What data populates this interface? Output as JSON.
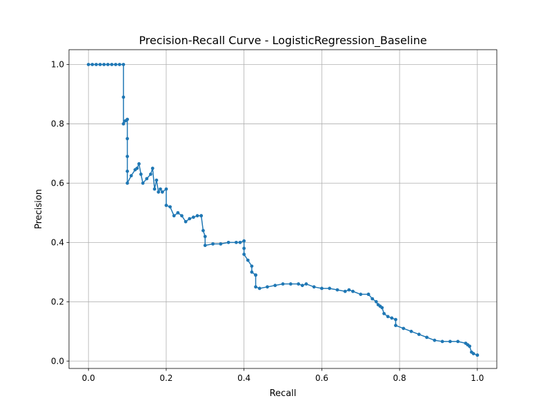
{
  "chart_data": {
    "type": "line",
    "title": "Precision-Recall Curve - LogisticRegression_Baseline",
    "xlabel": "Recall",
    "ylabel": "Precision",
    "xlim": [
      -0.05,
      1.05
    ],
    "ylim": [
      -0.025,
      1.05
    ],
    "xticks": [
      0.0,
      0.2,
      0.4,
      0.6,
      0.8,
      1.0
    ],
    "xtick_labels": [
      "0.0",
      "0.2",
      "0.4",
      "0.6",
      "0.8",
      "1.0"
    ],
    "yticks": [
      0.0,
      0.2,
      0.4,
      0.6,
      0.8,
      1.0
    ],
    "ytick_labels": [
      "0.0",
      "0.2",
      "0.4",
      "0.6",
      "0.8",
      "1.0"
    ],
    "grid": true,
    "line_style": "step with circular markers",
    "colors": {
      "series": "#1f77b4",
      "grid": "#b0b0b0",
      "axes": "#000000"
    },
    "series": [
      {
        "x": [
          1.0,
          1.0,
          0.99,
          0.985,
          0.98,
          0.98,
          0.975,
          0.97,
          0.95,
          0.93,
          0.91,
          0.89,
          0.87,
          0.85,
          0.83,
          0.81,
          0.79,
          0.79,
          0.78,
          0.77,
          0.76,
          0.755,
          0.75,
          0.745,
          0.74,
          0.73,
          0.72,
          0.72,
          0.7,
          0.68,
          0.67,
          0.66,
          0.64,
          0.62,
          0.6,
          0.58,
          0.56,
          0.55,
          0.54,
          0.52,
          0.5,
          0.48,
          0.46,
          0.44,
          0.43,
          0.43,
          0.43,
          0.42,
          0.42,
          0.41,
          0.4,
          0.4,
          0.4,
          0.39,
          0.38,
          0.36,
          0.34,
          0.32,
          0.3,
          0.3,
          0.295,
          0.29,
          0.29,
          0.28,
          0.27,
          0.26,
          0.25,
          0.24,
          0.23,
          0.22,
          0.21,
          0.2,
          0.2,
          0.19,
          0.185,
          0.18,
          0.175,
          0.17,
          0.165,
          0.16,
          0.15,
          0.14,
          0.135,
          0.13,
          0.125,
          0.12,
          0.11,
          0.1,
          0.1,
          0.1,
          0.1,
          0.1,
          0.095,
          0.09,
          0.09,
          0.09,
          0.08,
          0.07,
          0.06,
          0.05,
          0.04,
          0.03,
          0.02,
          0.01,
          0.0
        ],
        "y": [
          0.02,
          0.02,
          0.025,
          0.03,
          0.05,
          0.05,
          0.055,
          0.06,
          0.066,
          0.066,
          0.066,
          0.07,
          0.08,
          0.09,
          0.1,
          0.11,
          0.12,
          0.14,
          0.145,
          0.15,
          0.16,
          0.18,
          0.185,
          0.19,
          0.2,
          0.21,
          0.225,
          0.225,
          0.225,
          0.235,
          0.24,
          0.235,
          0.24,
          0.245,
          0.245,
          0.25,
          0.26,
          0.255,
          0.26,
          0.26,
          0.26,
          0.255,
          0.25,
          0.245,
          0.25,
          0.29,
          0.29,
          0.3,
          0.32,
          0.34,
          0.36,
          0.38,
          0.405,
          0.4,
          0.4,
          0.4,
          0.395,
          0.395,
          0.39,
          0.42,
          0.44,
          0.49,
          0.49,
          0.49,
          0.485,
          0.48,
          0.47,
          0.49,
          0.5,
          0.49,
          0.52,
          0.525,
          0.58,
          0.57,
          0.58,
          0.57,
          0.61,
          0.58,
          0.65,
          0.63,
          0.615,
          0.6,
          0.63,
          0.665,
          0.65,
          0.645,
          0.625,
          0.6,
          0.64,
          0.69,
          0.75,
          0.815,
          0.81,
          0.8,
          0.89,
          1.0,
          1.0,
          1.0,
          1.0,
          1.0,
          1.0,
          1.0,
          1.0,
          1.0,
          1.0
        ]
      }
    ]
  }
}
